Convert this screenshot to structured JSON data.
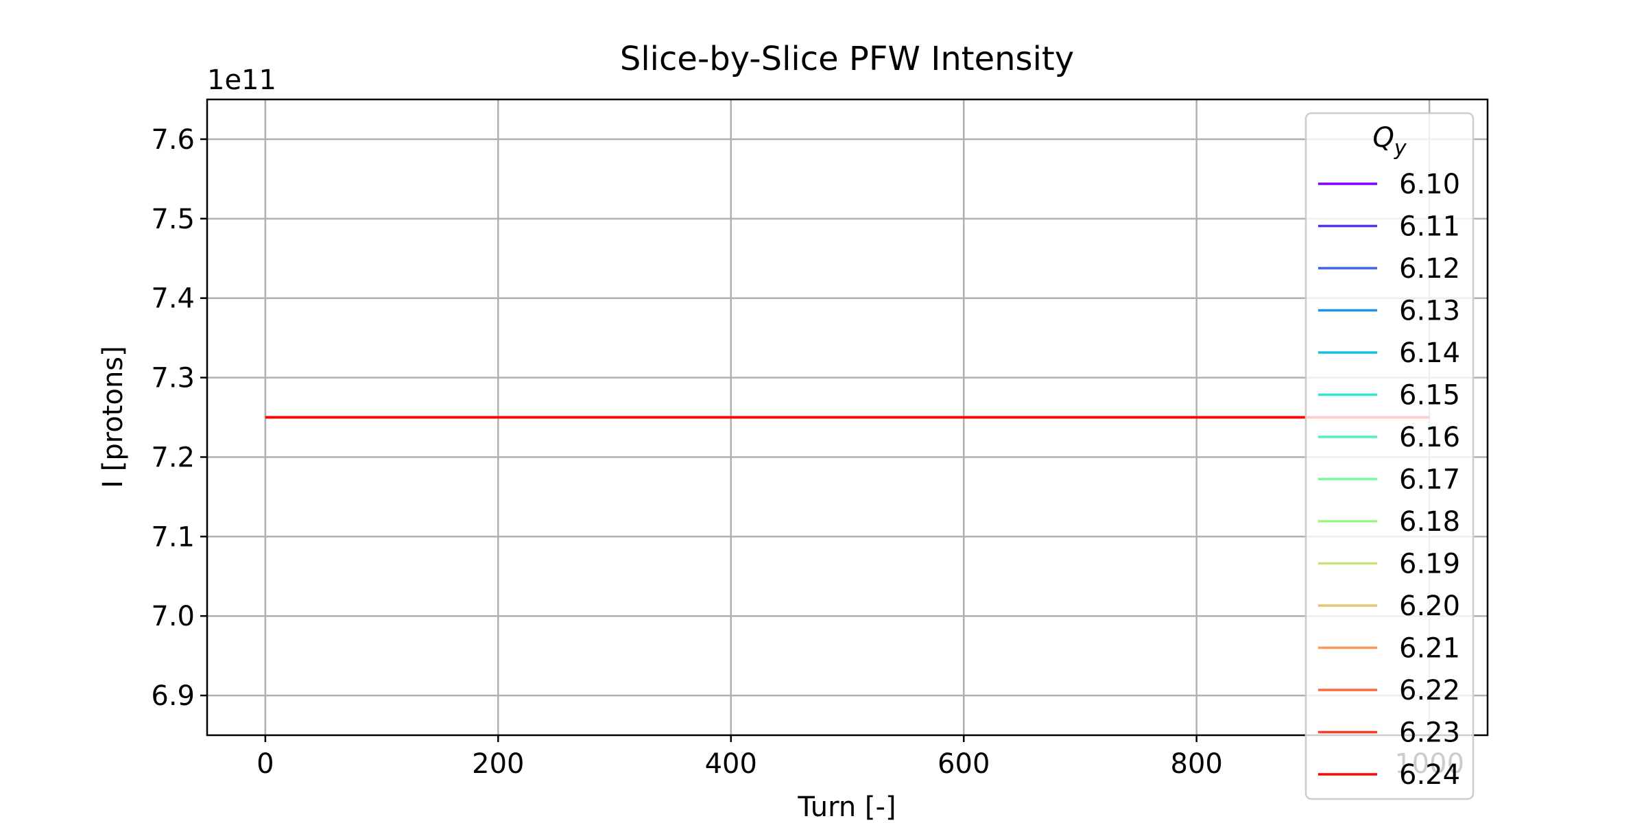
{
  "chart_data": {
    "type": "line",
    "title": "Slice-by-Slice PFW Intensity",
    "xlabel": "Turn [-]",
    "ylabel": "I [protons]",
    "y_offset_label": "1e11",
    "y_scale_factor": 100000000000.0,
    "xlim": [
      -50,
      1050
    ],
    "ylim": [
      6.85,
      7.65
    ],
    "xticks": [
      0,
      200,
      400,
      600,
      800,
      1000
    ],
    "xtick_labels": [
      "0",
      "200",
      "400",
      "600",
      "800",
      "1000"
    ],
    "yticks": [
      6.9,
      7.0,
      7.1,
      7.2,
      7.3,
      7.4,
      7.5,
      7.6
    ],
    "ytick_labels": [
      "6.9",
      "7.0",
      "7.1",
      "7.2",
      "7.3",
      "7.4",
      "7.5",
      "7.6"
    ],
    "grid": true,
    "legend": {
      "title": "Q_y",
      "title_main": "Q",
      "title_sub": "y",
      "placement": "upper right"
    },
    "series": [
      {
        "name": "6.10",
        "color": "#8000ff",
        "x": [
          0,
          1000
        ],
        "y": [
          7.25,
          7.25
        ]
      },
      {
        "name": "6.11",
        "color": "#5a2ff6",
        "x": [
          0,
          1000
        ],
        "y": [
          7.25,
          7.25
        ]
      },
      {
        "name": "6.12",
        "color": "#3c62f0",
        "x": [
          0,
          1000
        ],
        "y": [
          7.25,
          7.25
        ]
      },
      {
        "name": "6.13",
        "color": "#1e93e6",
        "x": [
          0,
          1000
        ],
        "y": [
          7.25,
          7.25
        ]
      },
      {
        "name": "6.14",
        "color": "#14c3e0",
        "x": [
          0,
          1000
        ],
        "y": [
          7.25,
          7.25
        ]
      },
      {
        "name": "6.15",
        "color": "#2ee5cf",
        "x": [
          0,
          1000
        ],
        "y": [
          7.25,
          7.25
        ]
      },
      {
        "name": "6.16",
        "color": "#50f5b6",
        "x": [
          0,
          1000
        ],
        "y": [
          7.25,
          7.25
        ]
      },
      {
        "name": "6.17",
        "color": "#78f9a0",
        "x": [
          0,
          1000
        ],
        "y": [
          7.25,
          7.25
        ]
      },
      {
        "name": "6.18",
        "color": "#9ef58a",
        "x": [
          0,
          1000
        ],
        "y": [
          7.25,
          7.25
        ]
      },
      {
        "name": "6.19",
        "color": "#c6e27a",
        "x": [
          0,
          1000
        ],
        "y": [
          7.25,
          7.25
        ]
      },
      {
        "name": "6.20",
        "color": "#e6c46a",
        "x": [
          0,
          1000
        ],
        "y": [
          7.25,
          7.25
        ]
      },
      {
        "name": "6.21",
        "color": "#ff9a54",
        "x": [
          0,
          1000
        ],
        "y": [
          7.25,
          7.25
        ]
      },
      {
        "name": "6.22",
        "color": "#ff6a40",
        "x": [
          0,
          1000
        ],
        "y": [
          7.25,
          7.25
        ]
      },
      {
        "name": "6.23",
        "color": "#ff3a25",
        "x": [
          0,
          1000
        ],
        "y": [
          7.25,
          7.25
        ]
      },
      {
        "name": "6.24",
        "color": "#ff0000",
        "x": [
          0,
          1000
        ],
        "y": [
          7.25,
          7.25
        ]
      }
    ]
  }
}
